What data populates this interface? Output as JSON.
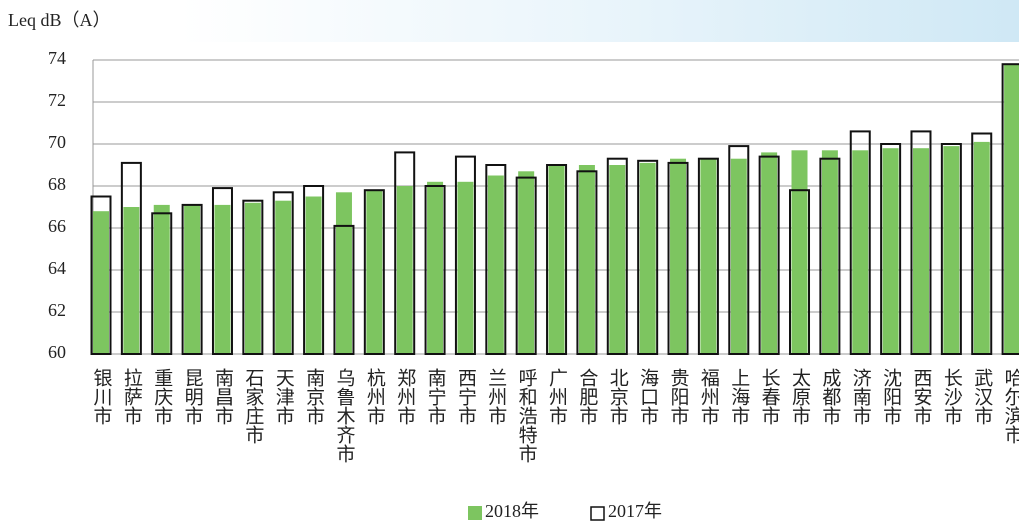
{
  "chart_data": {
    "type": "bar",
    "y_axis_label": "Leq  dB（A）",
    "categories": [
      "银川市",
      "拉萨市",
      "重庆市",
      "昆明市",
      "南昌市",
      "石家庄市",
      "天津市",
      "南京市",
      "乌鲁木齐市",
      "杭州市",
      "郑州市",
      "南宁市",
      "西宁市",
      "兰州市",
      "呼和浩特市",
      "广州市",
      "合肥市",
      "北京市",
      "海口市",
      "贵阳市",
      "福州市",
      "上海市",
      "长春市",
      "太原市",
      "成都市",
      "济南市",
      "沈阳市",
      "西安市",
      "长沙市",
      "武汉市",
      "哈尔滨市"
    ],
    "series": [
      {
        "name": "2018年",
        "color": "#7dc560",
        "values": [
          66.8,
          67.0,
          67.1,
          67.1,
          67.1,
          67.2,
          67.3,
          67.5,
          67.7,
          67.8,
          68.0,
          68.2,
          68.2,
          68.5,
          68.7,
          69.0,
          69.0,
          69.0,
          69.1,
          69.3,
          69.3,
          69.3,
          69.6,
          69.7,
          69.7,
          69.7,
          69.8,
          69.8,
          69.9,
          70.1,
          73.8
        ]
      },
      {
        "name": "2017年",
        "color": "#111111",
        "values": [
          67.5,
          69.1,
          66.7,
          67.1,
          67.9,
          67.3,
          67.7,
          68.0,
          66.1,
          67.8,
          69.6,
          68.0,
          69.4,
          69.0,
          68.4,
          69.0,
          68.7,
          69.3,
          69.2,
          69.1,
          69.3,
          69.9,
          69.4,
          67.8,
          69.3,
          70.6,
          70.0,
          70.6,
          70.0,
          70.5,
          73.8
        ]
      }
    ],
    "ylim": [
      60,
      74
    ],
    "yticks": [
      60,
      62,
      64,
      66,
      68,
      70,
      72,
      74
    ],
    "grid": true
  }
}
